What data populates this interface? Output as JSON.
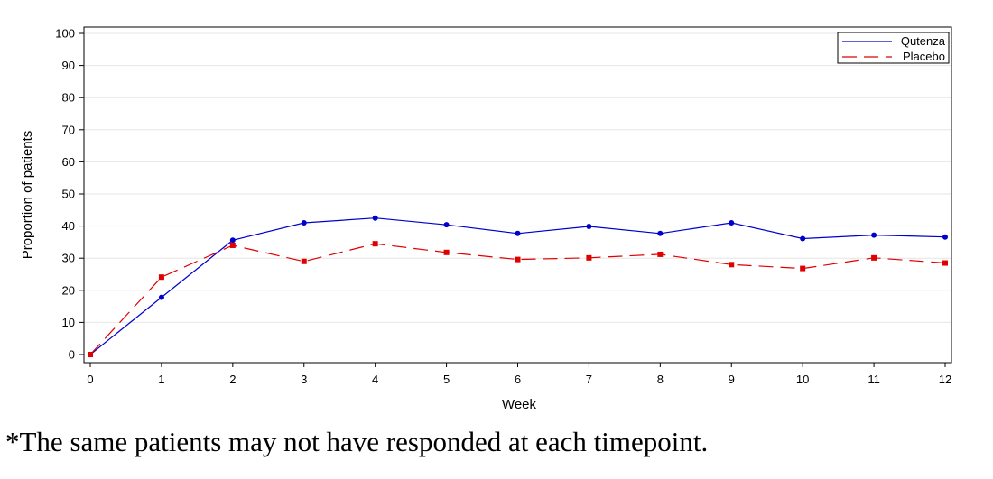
{
  "chart_data": {
    "type": "line",
    "xlabel": "Week",
    "ylabel": "Proportion of patients",
    "x": [
      0,
      1,
      2,
      3,
      4,
      5,
      6,
      7,
      8,
      9,
      10,
      11,
      12
    ],
    "xlim": [
      0,
      12
    ],
    "ylim": [
      0,
      100
    ],
    "yticks": [
      0,
      10,
      20,
      30,
      40,
      50,
      60,
      70,
      80,
      90,
      100
    ],
    "grid": true,
    "legend_position": "top-right",
    "series": [
      {
        "name": "Qutenza",
        "color": "#0000cc",
        "line_style": "solid",
        "marker": "circle",
        "values": [
          0,
          17.8,
          35.6,
          41,
          42.5,
          40.4,
          37.7,
          39.9,
          37.7,
          41,
          36.1,
          37.2,
          36.6
        ]
      },
      {
        "name": "Placebo",
        "color": "#e00000",
        "line_style": "dashed",
        "marker": "square",
        "values": [
          0,
          24.1,
          34,
          29,
          34.5,
          31.8,
          29.6,
          30.1,
          31.2,
          28,
          26.8,
          30.1,
          28.5
        ]
      }
    ]
  },
  "footnote": "*The same patients may not have responded at each timepoint."
}
